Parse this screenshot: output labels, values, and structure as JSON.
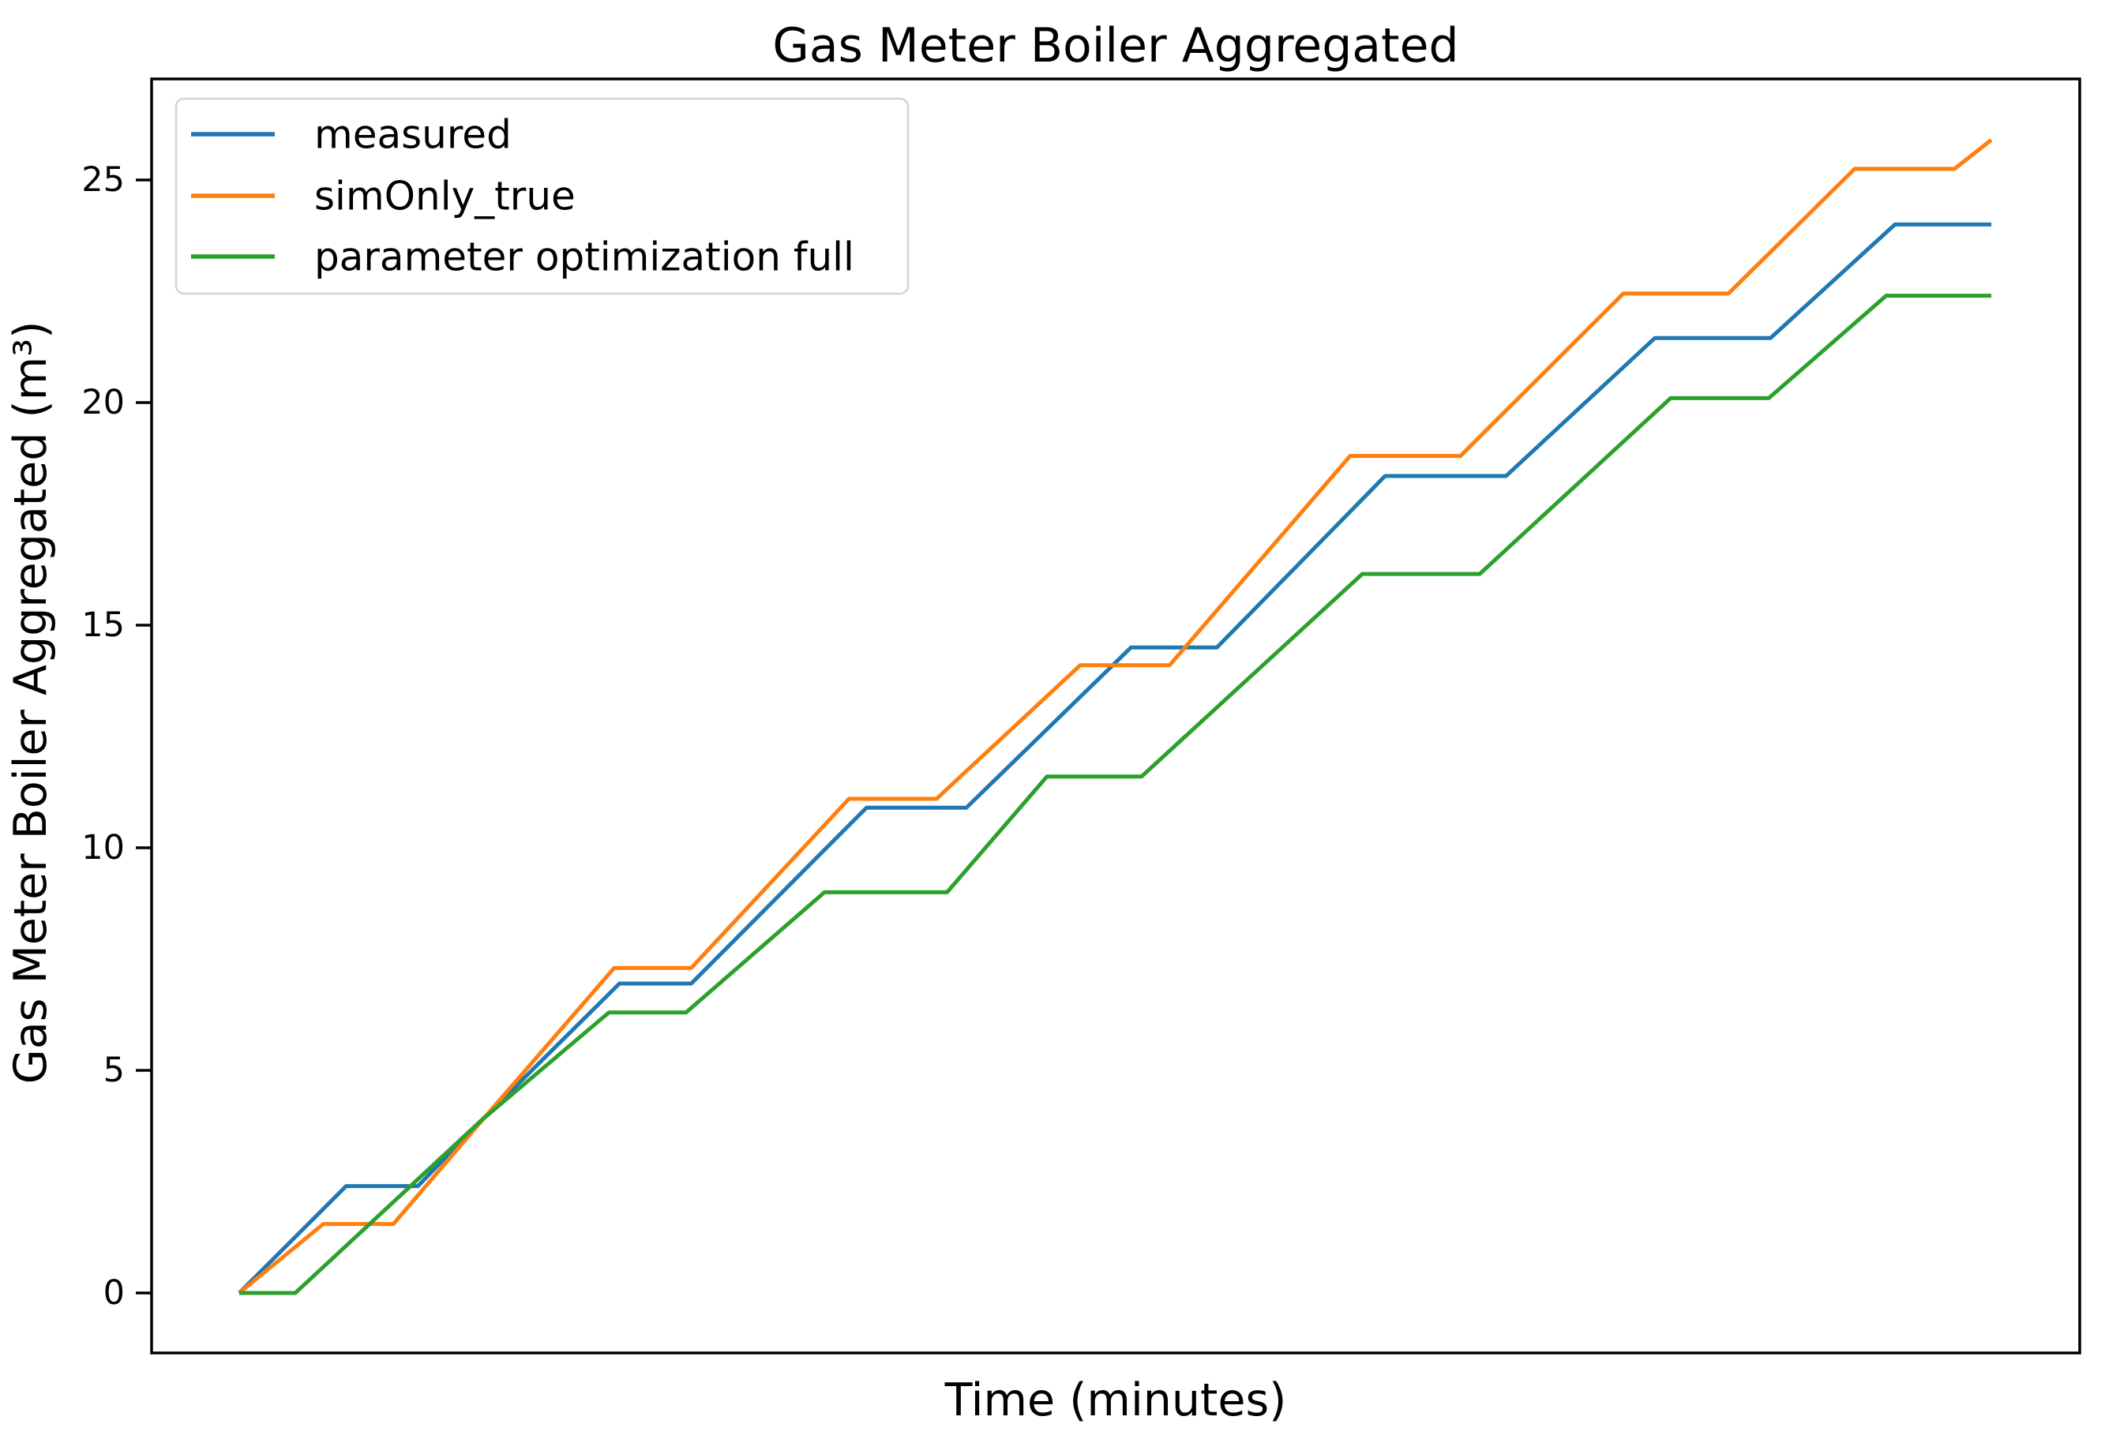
{
  "chart_data": {
    "type": "line",
    "title": "Gas Meter Boiler Aggregated",
    "xlabel": "Time (minutes)",
    "ylabel": "Gas Meter Boiler Aggregated (m³)",
    "x_units": "percent_of_visible_time_span",
    "x_tick_labels_shown": false,
    "yticks": [
      0,
      5,
      10,
      15,
      20,
      25
    ],
    "ylim": [
      -1.4,
      28.0
    ],
    "xlim_percent": [
      -5,
      105
    ],
    "grid": false,
    "legend_position": "upper left",
    "background_color": "#ffffff",
    "series": [
      {
        "name": "measured",
        "color": "#1f77b4",
        "t": [
          0,
          6.1,
          10.2,
          13.8,
          21.7,
          25.8,
          35.8,
          41.5,
          50.9,
          55.8,
          65.4,
          72.3,
          80.8,
          87.4,
          94.5,
          100
        ],
        "v": [
          0,
          2.4,
          2.4,
          3.87,
          6.95,
          6.95,
          10.9,
          10.9,
          14.5,
          14.5,
          18.35,
          18.35,
          21.45,
          21.45,
          24.0,
          24.0
        ]
      },
      {
        "name": "simOnly_true",
        "color": "#ff7f0e",
        "t": [
          0,
          4.8,
          8.8,
          13.8,
          21.4,
          25.8,
          34.8,
          39.8,
          48.0,
          53.1,
          63.4,
          69.7,
          79.0,
          85.0,
          92.2,
          97.9,
          100
        ],
        "v": [
          0,
          1.55,
          1.55,
          3.85,
          7.3,
          7.3,
          11.1,
          11.1,
          14.1,
          14.1,
          18.8,
          18.8,
          22.45,
          22.45,
          25.25,
          25.25,
          25.9
        ]
      },
      {
        "name": "parameter optimization full",
        "color": "#2ca02c",
        "t": [
          0,
          3.2,
          13.8,
          21.1,
          25.5,
          33.4,
          40.4,
          46.1,
          51.5,
          64.1,
          70.8,
          81.7,
          87.3,
          94.0,
          100
        ],
        "v": [
          0,
          0,
          3.87,
          6.3,
          6.3,
          9.0,
          9.0,
          11.6,
          11.6,
          16.15,
          16.15,
          20.1,
          20.1,
          22.4,
          22.4
        ]
      }
    ]
  }
}
